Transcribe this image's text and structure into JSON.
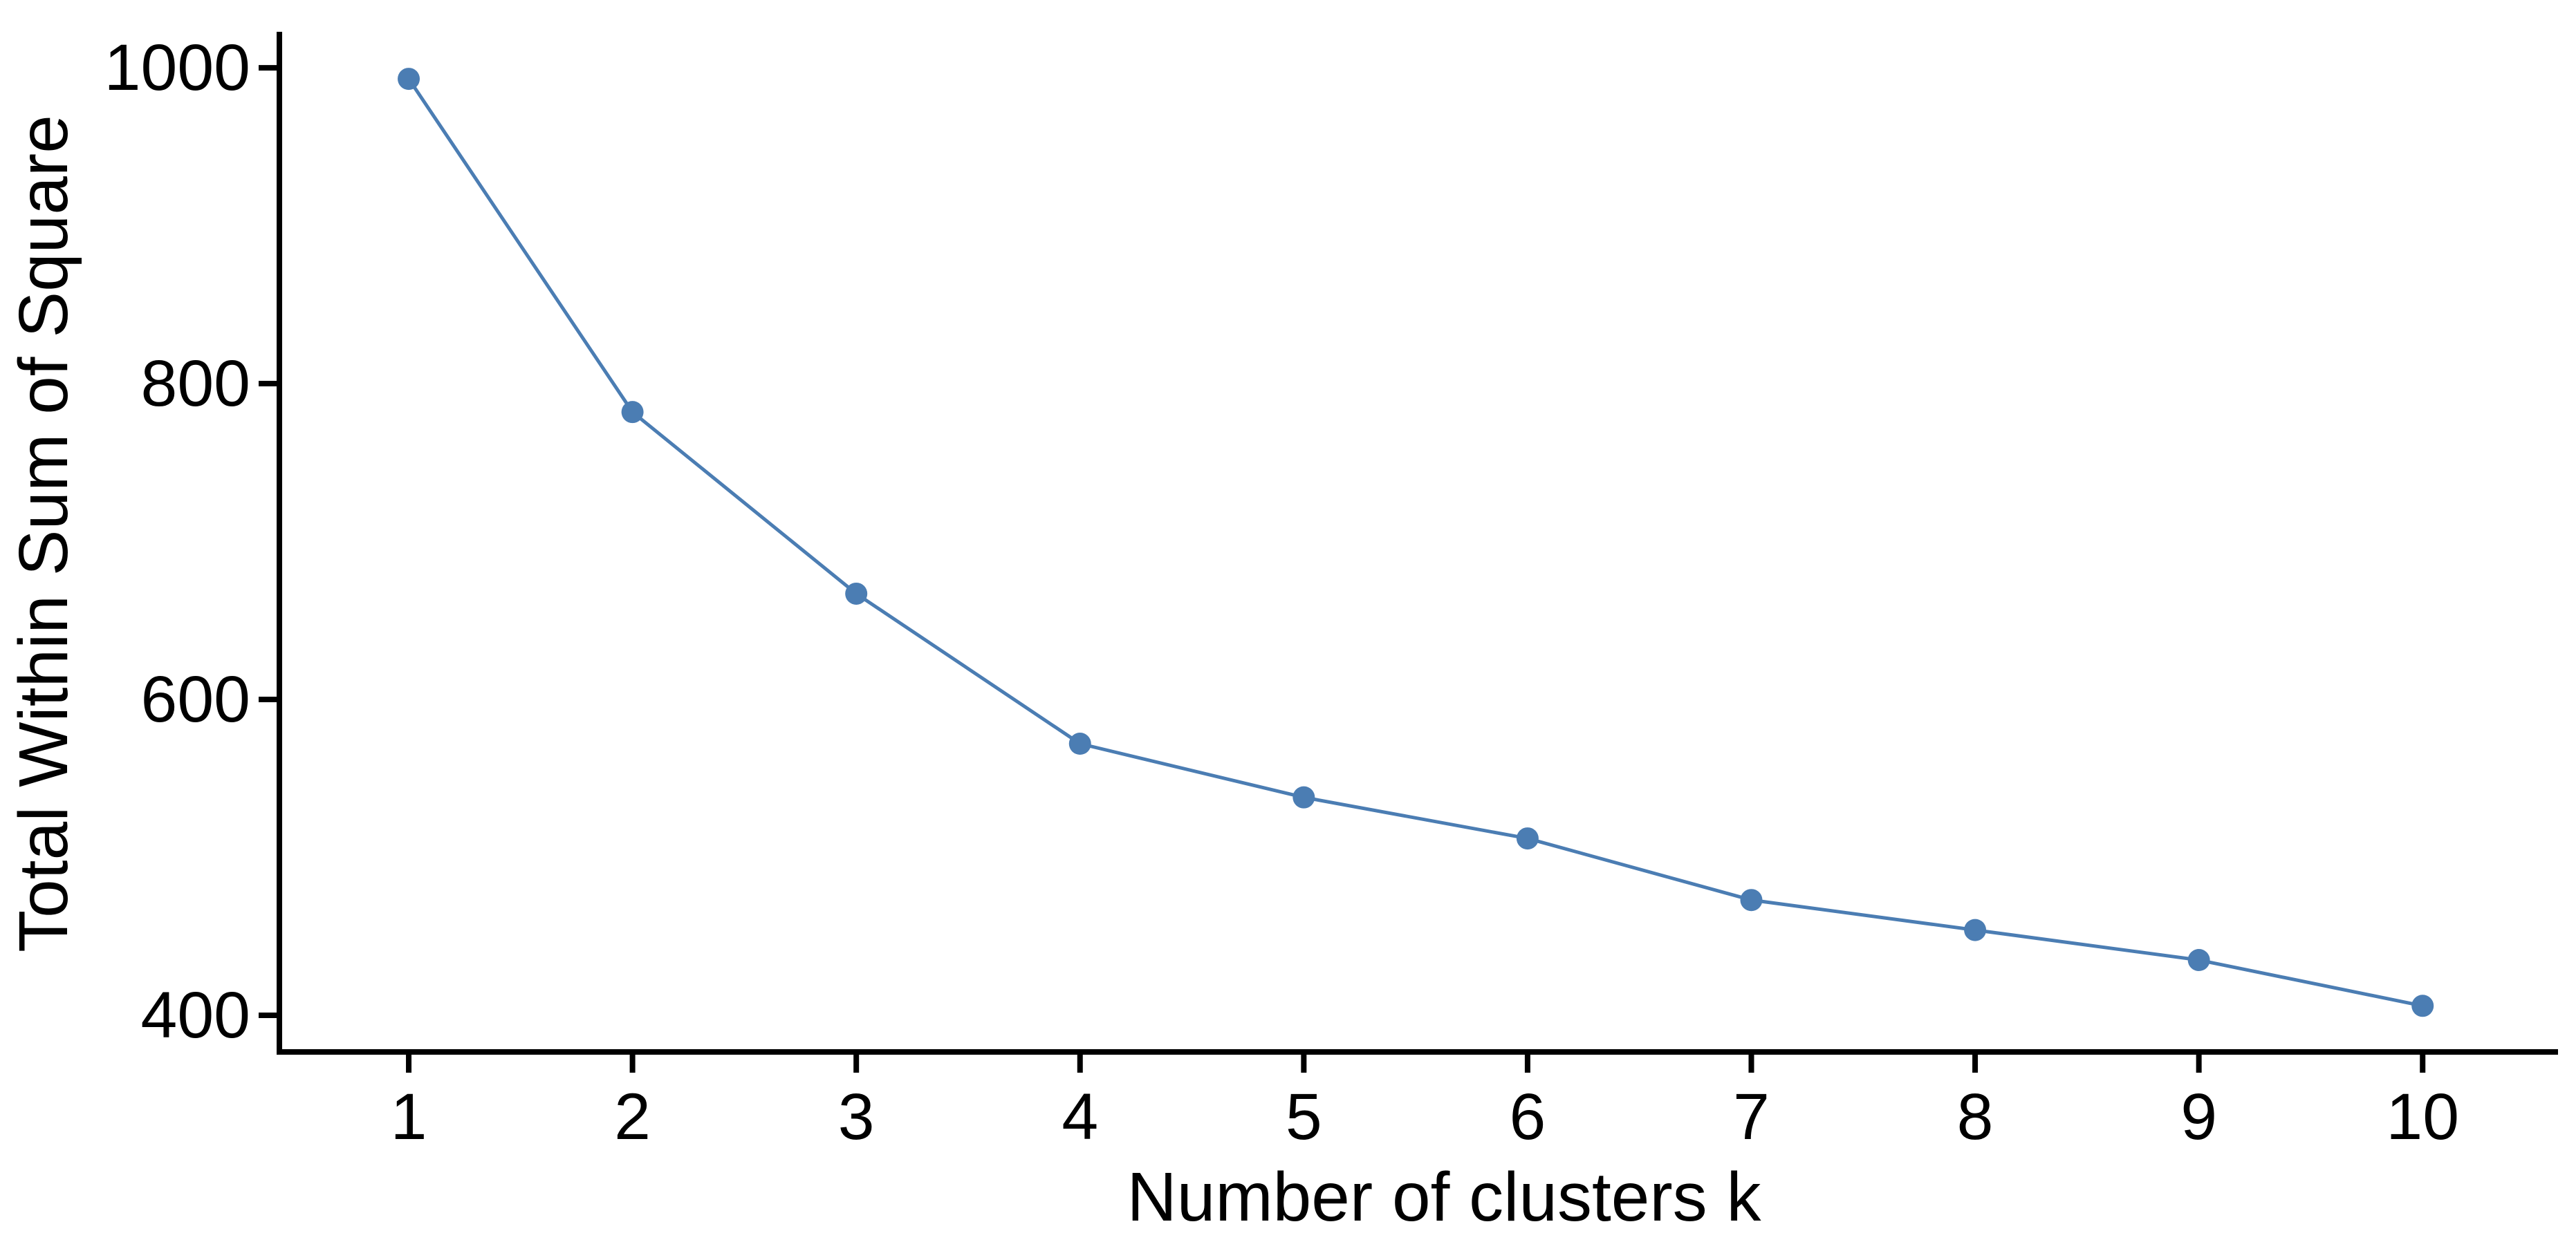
{
  "page": {
    "background_color": "#ffffff",
    "text_color": "#000000"
  },
  "chart_data": {
    "type": "line",
    "title": "",
    "xlabel": "Number of clusters k",
    "ylabel": "Total Within Sum of Square",
    "x": [
      1,
      2,
      3,
      4,
      5,
      6,
      7,
      8,
      9,
      10
    ],
    "values": [
      993,
      782,
      667,
      572,
      538,
      512,
      473,
      454,
      435,
      406
    ],
    "x_ticks": [
      "1",
      "2",
      "3",
      "4",
      "5",
      "6",
      "7",
      "8",
      "9",
      "10"
    ],
    "y_ticks": [
      "1000",
      "800",
      "600",
      "400"
    ],
    "y_tick_values": [
      1000,
      800,
      600,
      400
    ],
    "xlim": [
      0.422,
      10.605
    ],
    "ylim": [
      376.8,
      1022.8
    ],
    "grid": false,
    "legend": "none",
    "marker": "circle",
    "line_color": "#4b7db3",
    "marker_color": "#4b7db3",
    "axis_color": "#000000"
  }
}
